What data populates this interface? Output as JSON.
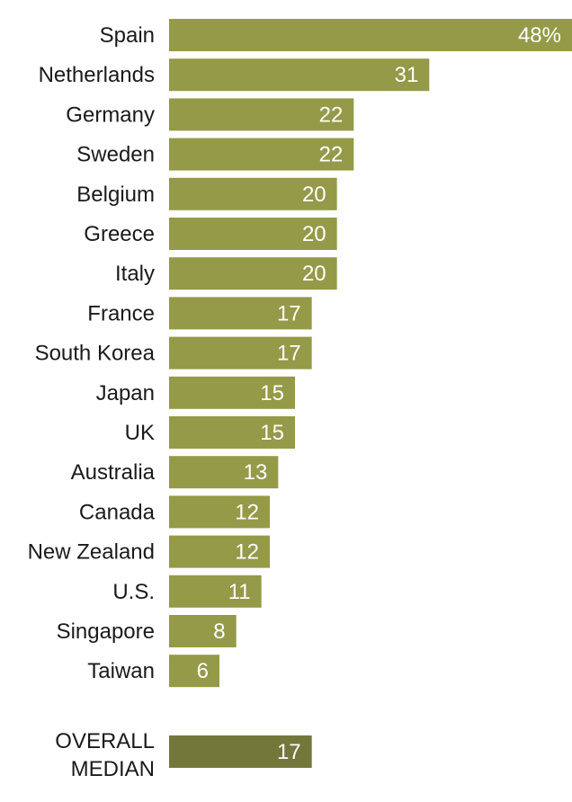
{
  "chart_data": {
    "type": "bar",
    "orientation": "horizontal",
    "categories": [
      "Spain",
      "Netherlands",
      "Germany",
      "Sweden",
      "Belgium",
      "Greece",
      "Italy",
      "France",
      "South Korea",
      "Japan",
      "UK",
      "Australia",
      "Canada",
      "New Zealand",
      "U.S.",
      "Singapore",
      "Taiwan"
    ],
    "values": [
      48,
      31,
      22,
      22,
      20,
      20,
      20,
      17,
      17,
      15,
      15,
      13,
      12,
      12,
      11,
      8,
      6
    ],
    "value_labels": [
      "48%",
      "31",
      "22",
      "22",
      "20",
      "20",
      "20",
      "17",
      "17",
      "15",
      "15",
      "13",
      "12",
      "12",
      "11",
      "8",
      "6"
    ],
    "median": {
      "label_lines": [
        "OVERALL",
        "MEDIAN"
      ],
      "value": 17,
      "value_label": "17"
    },
    "bar_color": "#949a47",
    "median_bar_color": "#73773a",
    "xlim": [
      0,
      48
    ]
  }
}
